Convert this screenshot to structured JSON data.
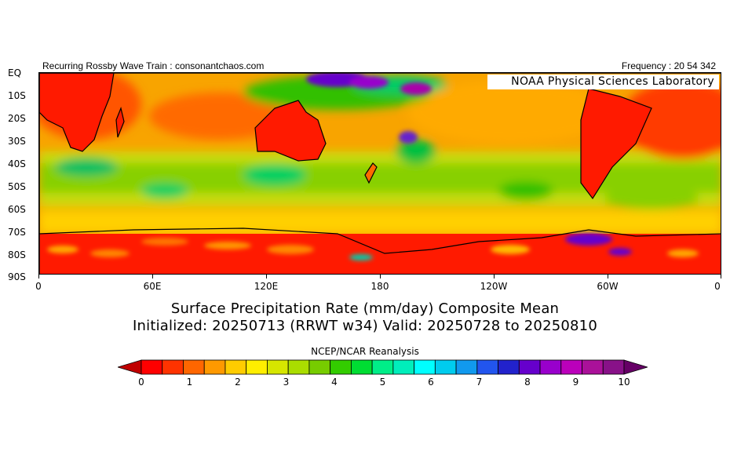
{
  "header": {
    "left_title": "Recurring Rossby Wave Train : consonantchaos.com",
    "right_freq": "Frequency : 20 54 342"
  },
  "map": {
    "watermark": "NOAA Physical Sciences Laboratory",
    "lat_labels": [
      "EQ",
      "10S",
      "20S",
      "30S",
      "40S",
      "50S",
      "60S",
      "70S",
      "80S",
      "90S"
    ],
    "lon_labels": [
      "0",
      "60E",
      "120E",
      "180",
      "120W",
      "60W",
      "0"
    ]
  },
  "titles": {
    "main": "Surface Precipitation Rate (mm/day) Composite Mean",
    "sub": "Initialized: 20250713 (RRWT w34) Valid: 20250728 to 20250810",
    "source": "NCEP/NCAR Reanalysis"
  },
  "colorbar": {
    "labels": [
      "0",
      "1",
      "2",
      "3",
      "4",
      "5",
      "6",
      "7",
      "8",
      "9",
      "10"
    ],
    "colors": [
      "#c00000",
      "#ff0000",
      "#ff3300",
      "#ff6600",
      "#ff9900",
      "#ffcc00",
      "#ffee00",
      "#d6e600",
      "#aadd00",
      "#77cc00",
      "#33cc00",
      "#00dd33",
      "#00ee88",
      "#00eebb",
      "#00ffff",
      "#00ccee",
      "#1199ee",
      "#2255ee",
      "#2222cc",
      "#6600cc",
      "#9900cc",
      "#bb00bb",
      "#aa1199",
      "#881188",
      "#660066"
    ]
  },
  "colors": {
    "ocean_base": "#f8a400",
    "land_base": "#ff1a00",
    "antarctic": "#ff1a00"
  }
}
